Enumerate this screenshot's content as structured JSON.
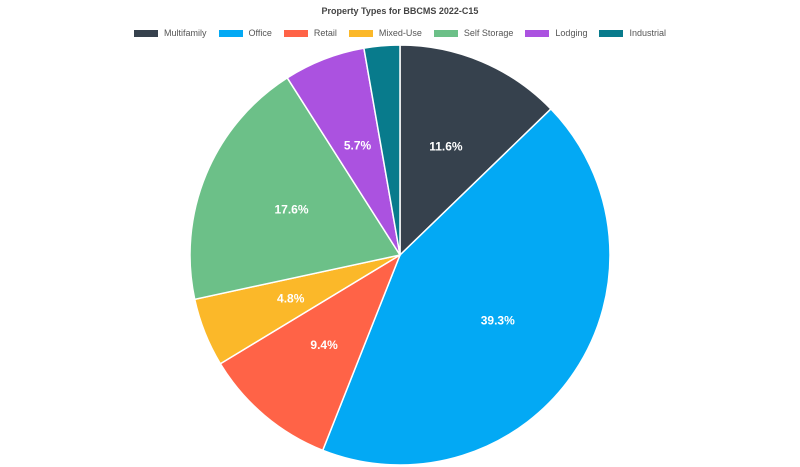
{
  "chart_data": {
    "type": "pie",
    "title": "Property Types for BBCMS 2022-C15",
    "legend_position": "top",
    "slices": [
      {
        "label": "Multifamily",
        "value": 11.6,
        "display": "11.6%",
        "color": "#36414d"
      },
      {
        "label": "Office",
        "value": 39.3,
        "display": "39.3%",
        "color": "#03a9f4"
      },
      {
        "label": "Retail",
        "value": 9.4,
        "display": "9.4%",
        "color": "#ff6347"
      },
      {
        "label": "Mixed-Use",
        "value": 4.8,
        "display": "4.8%",
        "color": "#fbb829"
      },
      {
        "label": "Self Storage",
        "value": 17.6,
        "display": "17.6%",
        "color": "#6cc088"
      },
      {
        "label": "Lodging",
        "value": 5.7,
        "display": "5.7%",
        "color": "#ab52e0"
      },
      {
        "label": "Industrial",
        "value": 2.5,
        "display": "",
        "color": "#087b8c"
      }
    ]
  }
}
